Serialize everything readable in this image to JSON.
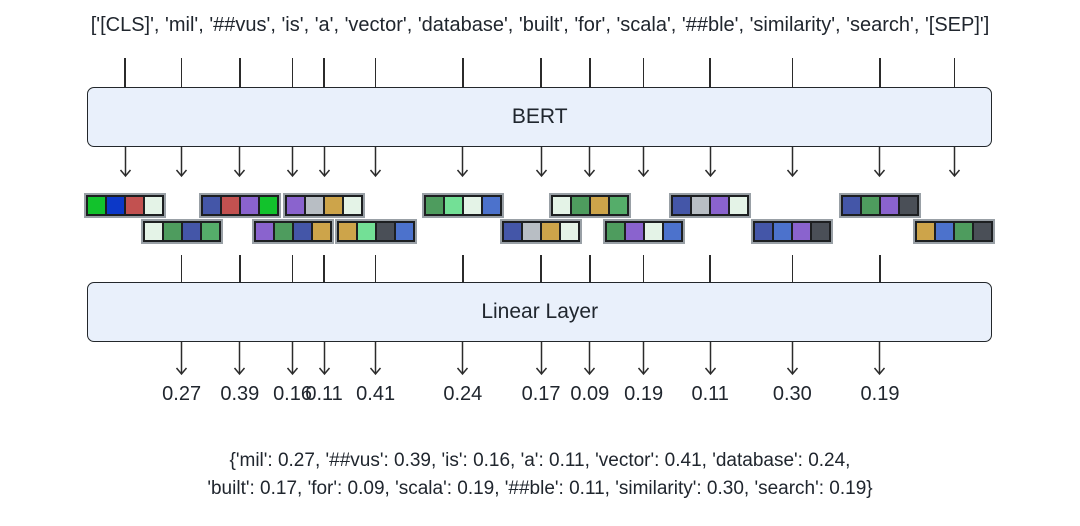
{
  "figure": {
    "background": "#ffffff",
    "text_color": "#20262e",
    "line_color": "#2b2b2b",
    "box_fill": "#e9f0fb",
    "box_border": "#23272b",
    "tokens": [
      "[CLS]",
      "mil",
      "##vus",
      "is",
      "a",
      "vector",
      "database",
      "built",
      "for",
      "scala",
      "##ble",
      "similarity",
      "search",
      "[SEP]"
    ],
    "bert_box_label": "BERT",
    "linear_box_label": "Linear Layer",
    "weights": [
      "0.27",
      "0.39",
      "0.16",
      "0.11",
      "0.41",
      "0.24",
      "0.17",
      "0.09",
      "0.19",
      "0.11",
      "0.30",
      "0.19"
    ],
    "output_dict": {
      "line1": "{'mil': 0.27, '##vus': 0.39, 'is': 0.16, 'a': 0.11, 'vector': 0.41, 'database': 0.24,",
      "line2": "'built': 0.17, 'for': 0.09, 'scala': 0.19, '##ble': 0.11, 'similarity': 0.30, 'search': 0.19}"
    },
    "vector_palette": {
      "bright_green": "#12c22c",
      "strong_blue": "#0c38c8",
      "soft_red": "#c25150",
      "pale_mint": "#e4f3e7",
      "sea_green": "#4e9c5e",
      "indigo": "#4456a8",
      "medium_green": "#55ad6a",
      "medium_purple": "#8a63ce",
      "silver": "#b8bec4",
      "goldenrod": "#cda44a",
      "light_green": "#73e096",
      "cornflower_blue": "#4c72cc",
      "dark_slate": "#4a4f57"
    },
    "token_vectors": [
      {
        "token": "[CLS]",
        "row": "top",
        "colors": [
          "#12c22c",
          "#0c38c8",
          "#c25150",
          "#e4f3e7"
        ]
      },
      {
        "token": "mil",
        "row": "bottom",
        "colors": [
          "#e4f3e7",
          "#4e9c5e",
          "#4456a8",
          "#55ad6a"
        ]
      },
      {
        "token": "##vus",
        "row": "top",
        "colors": [
          "#4456a8",
          "#c25150",
          "#8a63ce",
          "#12c22c"
        ]
      },
      {
        "token": "is",
        "row": "bottom",
        "colors": [
          "#8a63ce",
          "#4e9c5e",
          "#4456a8",
          "#cda44a"
        ]
      },
      {
        "token": "a",
        "row": "top",
        "colors": [
          "#8a63ce",
          "#b8bec4",
          "#cda44a",
          "#e4f3e7"
        ]
      },
      {
        "token": "vector",
        "row": "bottom",
        "colors": [
          "#cda44a",
          "#73e096",
          "#4a4f57",
          "#4c72cc"
        ]
      },
      {
        "token": "database",
        "row": "top",
        "colors": [
          "#4e9c5e",
          "#73e096",
          "#e4f3e7",
          "#4c72cc"
        ]
      },
      {
        "token": "built",
        "row": "bottom",
        "colors": [
          "#4456a8",
          "#b8bec4",
          "#cda44a",
          "#e4f3e7"
        ]
      },
      {
        "token": "for",
        "row": "top",
        "colors": [
          "#e4f3e7",
          "#4e9c5e",
          "#cda44a",
          "#55ad6a"
        ]
      },
      {
        "token": "scala",
        "row": "bottom",
        "colors": [
          "#4e9c5e",
          "#8a63ce",
          "#e4f3e7",
          "#4c72cc"
        ]
      },
      {
        "token": "##ble",
        "row": "top",
        "colors": [
          "#4456a8",
          "#b8bec4",
          "#8a63ce",
          "#e4f3e7"
        ]
      },
      {
        "token": "similarity",
        "row": "bottom",
        "colors": [
          "#4456a8",
          "#4c72cc",
          "#8a63ce",
          "#4a4f57"
        ]
      },
      {
        "token": "search",
        "row": "top",
        "colors": [
          "#4456a8",
          "#4e9c5e",
          "#8a63ce",
          "#4a4f57"
        ]
      },
      {
        "token": "[SEP]",
        "row": "bottom",
        "colors": [
          "#cda44a",
          "#4c72cc",
          "#4e9c5e",
          "#4a4f57"
        ]
      }
    ]
  }
}
